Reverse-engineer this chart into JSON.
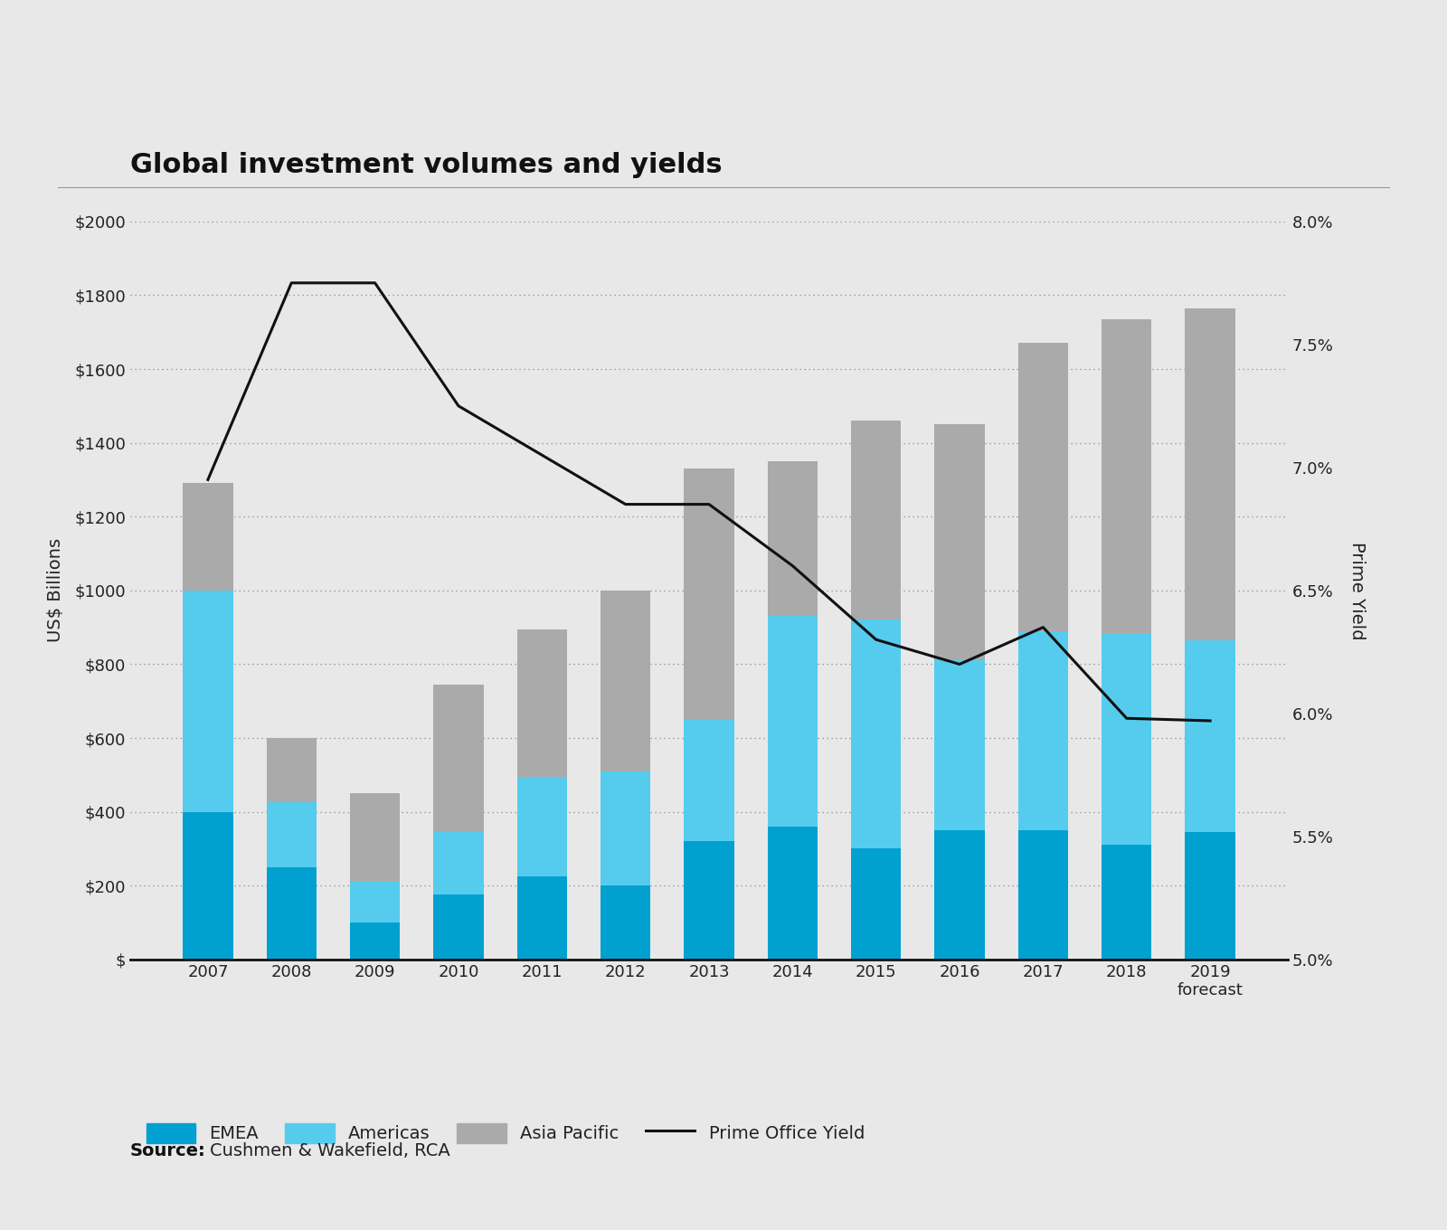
{
  "title": "Global investment volumes and yields",
  "years": [
    "2007",
    "2008",
    "2009",
    "2010",
    "2011",
    "2012",
    "2013",
    "2014",
    "2015",
    "2016",
    "2017",
    "2018",
    "2019\nforecast"
  ],
  "emea": [
    400,
    250,
    100,
    175,
    225,
    200,
    320,
    360,
    300,
    350,
    350,
    310,
    345
  ],
  "americas": [
    600,
    175,
    110,
    170,
    270,
    310,
    330,
    570,
    620,
    460,
    540,
    575,
    520
  ],
  "asia_pacific": [
    290,
    175,
    240,
    400,
    400,
    490,
    680,
    420,
    540,
    640,
    780,
    850,
    900
  ],
  "prime_yield": [
    6.95,
    7.75,
    7.75,
    7.25,
    7.05,
    6.85,
    6.85,
    6.6,
    6.3,
    6.2,
    6.35,
    5.98,
    5.97
  ],
  "emea_color": "#00a0d0",
  "americas_color": "#55ccee",
  "asia_pacific_color": "#aaaaaa",
  "yield_line_color": "#111111",
  "background_color": "#e8e8e8",
  "ylabel_left": "US$ Billions",
  "ylabel_right": "Prime Yield",
  "ylim_left": [
    0,
    2000
  ],
  "ylim_right": [
    5.0,
    8.0
  ],
  "yticks_left": [
    0,
    200,
    400,
    600,
    800,
    1000,
    1200,
    1400,
    1600,
    1800,
    2000
  ],
  "ytick_labels_left": [
    "$",
    "$200",
    "$400",
    "$600",
    "$800",
    "$1000",
    "$1200",
    "$1400",
    "$1600",
    "$1800",
    "$2000"
  ],
  "yticks_right": [
    5.0,
    5.5,
    6.0,
    6.5,
    7.0,
    7.5,
    8.0
  ],
  "ytick_labels_right": [
    "5.0%",
    "5.5%",
    "6.0%",
    "6.5%",
    "7.0%",
    "7.5%",
    "8.0%"
  ],
  "source_label": "Source:",
  "source_text": "Cushmen & Wakefield, RCA",
  "legend_emea": "EMEA",
  "legend_americas": "Americas",
  "legend_asia": "Asia Pacific",
  "legend_yield": "Prime Office Yield",
  "title_fontsize": 22,
  "axis_fontsize": 14,
  "tick_fontsize": 13,
  "legend_fontsize": 14,
  "source_fontsize": 14
}
